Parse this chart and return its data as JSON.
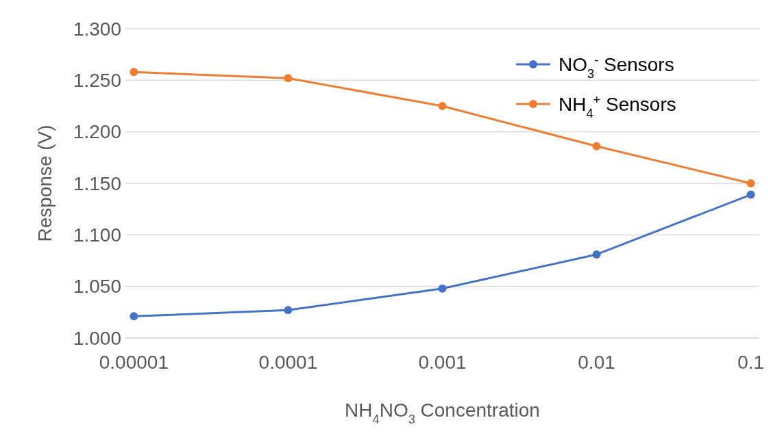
{
  "chart_data": {
    "type": "line",
    "xlabel": "NH$_{4}$NO$_{3}$ Concentration",
    "ylabel": "Response (V)",
    "categories": [
      "0.00001",
      "0.0001",
      "0.001",
      "0.01",
      "0.1"
    ],
    "series": [
      {
        "name": "NO$_{3}$$^{-}$ Sensors",
        "color": "#4472c4",
        "values": [
          1.021,
          1.027,
          1.048,
          1.081,
          1.139
        ]
      },
      {
        "name": "NH$_{4}$$^{+}$ Sensors",
        "color": "#ed7d31",
        "values": [
          1.258,
          1.252,
          1.225,
          1.186,
          1.15
        ]
      }
    ],
    "ylim": [
      1.0,
      1.3
    ],
    "yticks": [
      {
        "value": 1.0,
        "label": "1.000"
      },
      {
        "value": 1.05,
        "label": "1.050"
      },
      {
        "value": 1.1,
        "label": "1.100"
      },
      {
        "value": 1.15,
        "label": "1.150"
      },
      {
        "value": 1.2,
        "label": "1.200"
      },
      {
        "value": 1.25,
        "label": "1.250"
      },
      {
        "value": 1.3,
        "label": "1.300"
      }
    ],
    "grid": "y",
    "legend": "top right",
    "marker": "circle",
    "line_style": "solid"
  }
}
